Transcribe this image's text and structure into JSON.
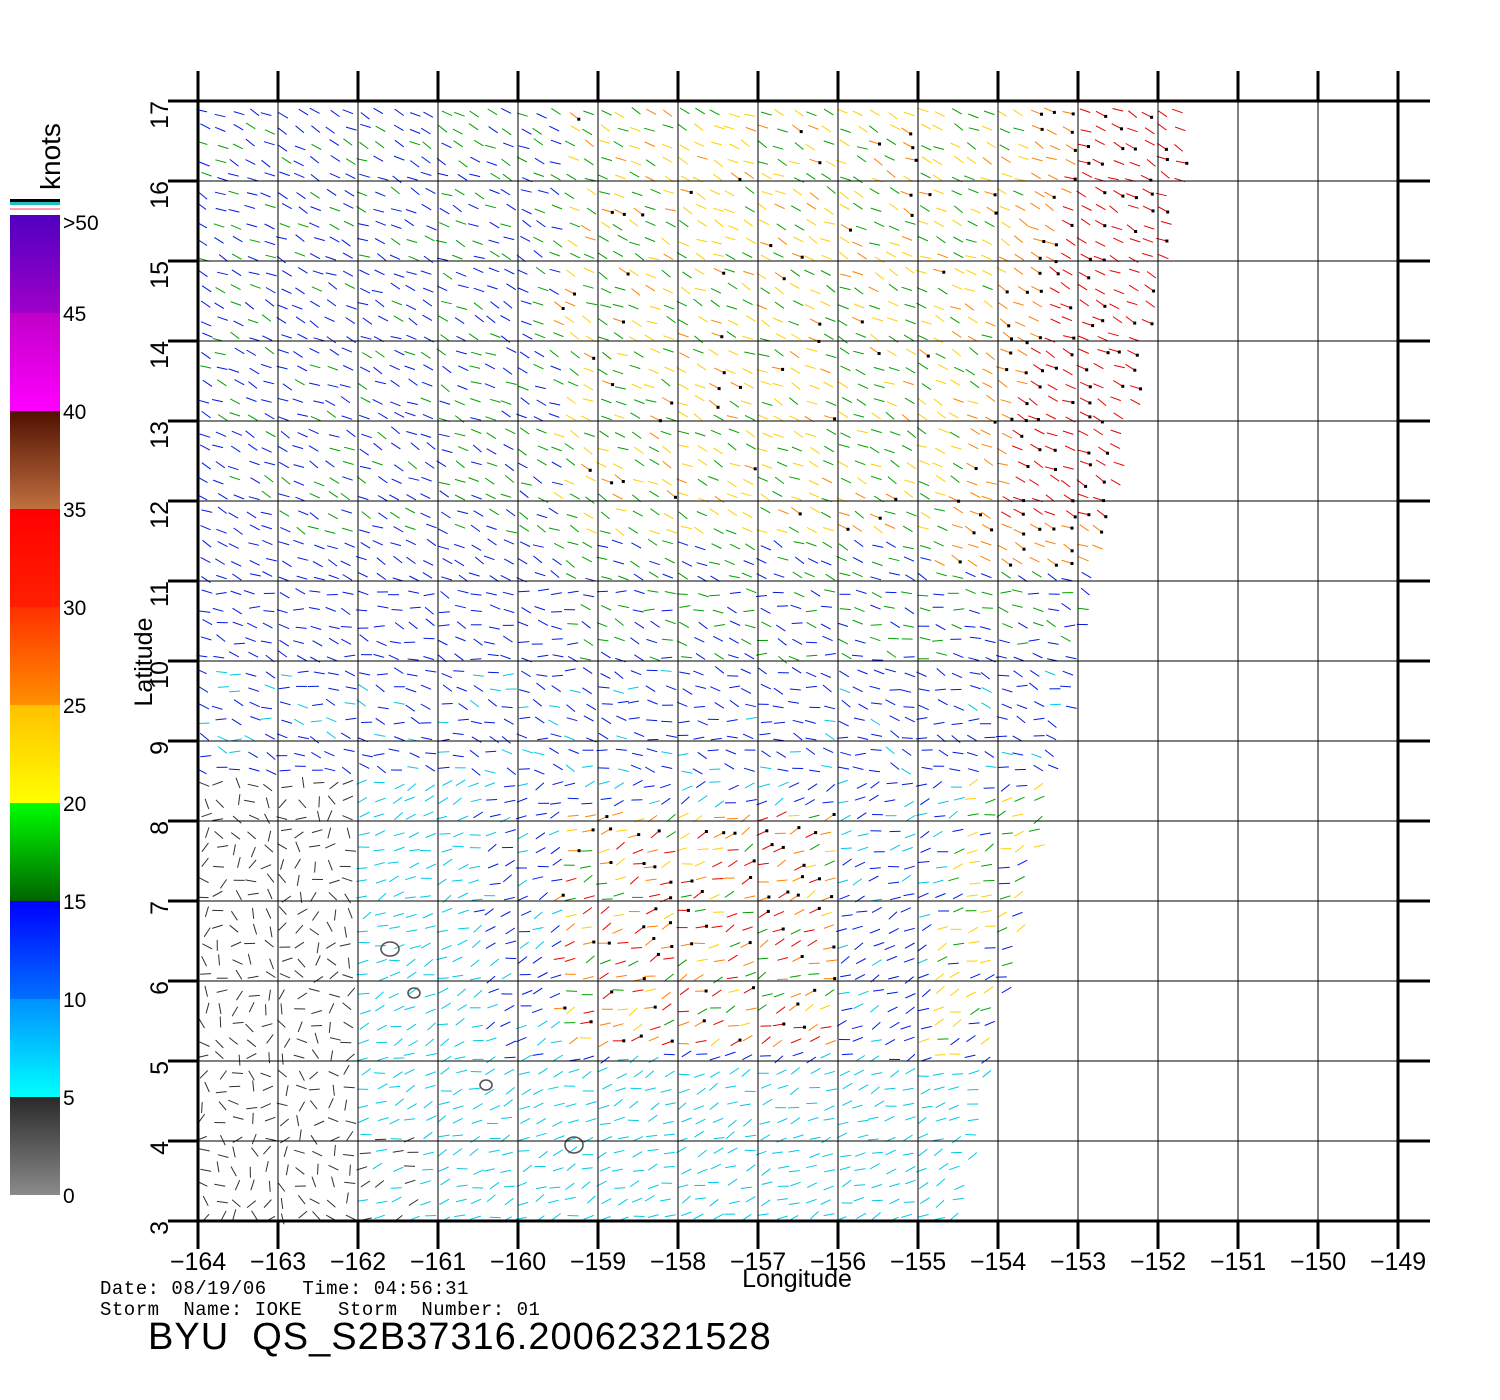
{
  "colorbar": {
    "unit_label": "knots",
    "ticks": [
      "0",
      "5",
      "10",
      "15",
      "20",
      "25",
      "30",
      "35",
      "40",
      "45",
      ">50"
    ],
    "bands": [
      {
        "from": 0,
        "to": 5,
        "colors": [
          "#8a8a8a",
          "#2a2a2a"
        ]
      },
      {
        "from": 5,
        "to": 10,
        "colors": [
          "#00ffff",
          "#0090ff"
        ]
      },
      {
        "from": 10,
        "to": 15,
        "colors": [
          "#0070ff",
          "#0000ff"
        ]
      },
      {
        "from": 15,
        "to": 20,
        "colors": [
          "#006400",
          "#00ff00"
        ]
      },
      {
        "from": 20,
        "to": 25,
        "colors": [
          "#ffff00",
          "#ffc000"
        ]
      },
      {
        "from": 25,
        "to": 30,
        "colors": [
          "#ff9000",
          "#ff3000"
        ]
      },
      {
        "from": 30,
        "to": 35,
        "colors": [
          "#ff2000",
          "#ff0000"
        ]
      },
      {
        "from": 35,
        "to": 40,
        "colors": [
          "#c07040",
          "#501000"
        ]
      },
      {
        "from": 40,
        "to": 45,
        "colors": [
          "#ff00ff",
          "#c000c8"
        ]
      },
      {
        "from": 45,
        "to": 50,
        "colors": [
          "#a000c8",
          "#5000c0"
        ]
      }
    ]
  },
  "map": {
    "x_label": "Longitude",
    "y_label": "Latitude",
    "lon_range": [
      -164,
      -149
    ],
    "lat_range": [
      3,
      17
    ],
    "lon_ticks": [
      "-164",
      "-163",
      "-162",
      "-161",
      "-160",
      "-159",
      "-158",
      "-157",
      "-156",
      "-155",
      "-154",
      "-153",
      "-152",
      "-151",
      "-150",
      "-149"
    ],
    "lat_ticks": [
      "3",
      "4",
      "5",
      "6",
      "7",
      "8",
      "9",
      "10",
      "11",
      "12",
      "13",
      "14",
      "15",
      "16",
      "17"
    ],
    "grid": true,
    "swath_corners_lonlat": [
      [
        -164,
        3
      ],
      [
        -154.5,
        3
      ],
      [
        -151.5,
        17
      ],
      [
        -164,
        17
      ]
    ],
    "islands_lonlat": [
      [
        -161.6,
        6.4
      ],
      [
        -161.3,
        5.85
      ],
      [
        -160.4,
        4.7
      ],
      [
        -159.3,
        3.95
      ]
    ]
  },
  "footer": {
    "date_line": "Date: 08/19/06   Time: 04:56:31",
    "storm_line": "Storm  Name: IOKE   Storm  Number: 01",
    "product_title": "BYU  QS_S2B37316.20062321528"
  },
  "wind_palette": {
    "calm": "#303030",
    "light": "#00c8e6",
    "moderate": "#0018e6",
    "fresh": "#00a000",
    "strong": "#ffd000",
    "gale": "#ff8000",
    "storm": "#e60000",
    "rain_flag": "#000000"
  }
}
